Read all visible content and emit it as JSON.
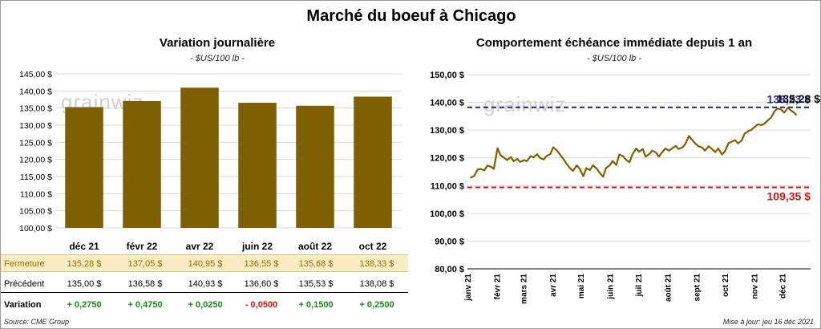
{
  "title": "Marché du boeuf à Chicago",
  "left_panel": {
    "title": "Variation  journalière",
    "subtitle": "- $US/100 lb -",
    "watermark": "grainwiz"
  },
  "right_panel": {
    "title": "Comportement  échéance  immédiate  depuis  1  an",
    "subtitle": "- $US/100 lb -",
    "watermark": "grainwiz",
    "ref_high_label": "138,23 $",
    "ref_low_label": "109,35 $",
    "last_label": "135,28 $"
  },
  "table": {
    "row_labels": {
      "close": "Fermeture",
      "prev": "Précédent",
      "var": "Variation"
    },
    "close": [
      "135,28  $",
      "137,05  $",
      "140,95  $",
      "136,55  $",
      "135,68  $",
      "138,33  $"
    ],
    "prev": [
      "135,00  $",
      "136,58  $",
      "140,93  $",
      "136,60  $",
      "135,53  $",
      "138,08  $"
    ],
    "var": [
      "+ 0,2750",
      "+ 0,4750",
      "+ 0,0250",
      "- 0,0500",
      "+ 0,1500",
      "+ 0,2500"
    ],
    "var_sign": [
      "pos",
      "pos",
      "pos",
      "neg",
      "pos",
      "pos"
    ]
  },
  "footer": {
    "source": "Source: CME Group",
    "updated": "Mise à jour: jeu 16 déc 2021"
  },
  "chart_data": [
    {
      "type": "bar",
      "title": "Variation  journalière",
      "categories": [
        "déc 21",
        "févr 22",
        "avr 22",
        "juin 22",
        "août 22",
        "oct 22"
      ],
      "values": [
        135.28,
        137.05,
        140.95,
        136.55,
        135.68,
        138.33
      ],
      "ylim": [
        100,
        145
      ],
      "ytick_values": [
        100,
        105,
        110,
        115,
        120,
        125,
        130,
        135,
        140,
        145
      ],
      "ytick_labels": [
        "100,00 $",
        "105,00 $",
        "110,00 $",
        "115,00 $",
        "120,00 $",
        "125,00 $",
        "130,00 $",
        "135,00 $",
        "140,00 $",
        "145,00 $"
      ],
      "bar_color": "#7f6000",
      "grid": true
    },
    {
      "type": "line",
      "title": "Comportement  échéance  immédiate  depuis  1  an",
      "ylim": [
        80,
        150
      ],
      "ytick_values": [
        80,
        90,
        100,
        110,
        120,
        130,
        140,
        150
      ],
      "ytick_labels": [
        "80,00 $",
        "90,00 $",
        "100,00 $",
        "110,00 $",
        "120,00 $",
        "130,00 $",
        "140,00 $",
        "150,00 $"
      ],
      "xtick_labels": [
        "janv 21",
        "févr 21",
        "mars 21",
        "avr 21",
        "mai 21",
        "juin 21",
        "juil 21",
        "août 21",
        "sept 21",
        "oct 21",
        "nov 21",
        "déc 21"
      ],
      "line_color": "#7f6000",
      "reference_lines": [
        {
          "value": 138.23,
          "color": "#1f1f9f",
          "label": "138,23 $"
        },
        {
          "value": 109.35,
          "color": "#e01010",
          "label": "109,35 $"
        }
      ],
      "series": [
        {
          "x": [
            "2021-01-04",
            "2021-01-08",
            "2021-01-12",
            "2021-01-15",
            "2021-01-19",
            "2021-01-22",
            "2021-01-26",
            "2021-01-29",
            "2021-02-02",
            "2021-02-05",
            "2021-02-09",
            "2021-02-12",
            "2021-02-16",
            "2021-02-19",
            "2021-02-23",
            "2021-02-26",
            "2021-03-02",
            "2021-03-05",
            "2021-03-09",
            "2021-03-12",
            "2021-03-16",
            "2021-03-19",
            "2021-03-23",
            "2021-03-26",
            "2021-03-30",
            "2021-04-02",
            "2021-04-06",
            "2021-04-09",
            "2021-04-13",
            "2021-04-16",
            "2021-04-20",
            "2021-04-23",
            "2021-04-27",
            "2021-04-30",
            "2021-05-04",
            "2021-05-07",
            "2021-05-11",
            "2021-05-14",
            "2021-05-18",
            "2021-05-21",
            "2021-05-25",
            "2021-05-28",
            "2021-06-01",
            "2021-06-04",
            "2021-06-08",
            "2021-06-11",
            "2021-06-15",
            "2021-06-18",
            "2021-06-22",
            "2021-06-25",
            "2021-06-29",
            "2021-07-02",
            "2021-07-06",
            "2021-07-09",
            "2021-07-13",
            "2021-07-16",
            "2021-07-20",
            "2021-07-23",
            "2021-07-27",
            "2021-07-30",
            "2021-08-03",
            "2021-08-06",
            "2021-08-10",
            "2021-08-13",
            "2021-08-17",
            "2021-08-20",
            "2021-08-24",
            "2021-08-27",
            "2021-08-31",
            "2021-09-03",
            "2021-09-07",
            "2021-09-10",
            "2021-09-14",
            "2021-09-17",
            "2021-09-21",
            "2021-09-24",
            "2021-09-28",
            "2021-10-01",
            "2021-10-05",
            "2021-10-08",
            "2021-10-12",
            "2021-10-15",
            "2021-10-19",
            "2021-10-22",
            "2021-10-26",
            "2021-10-29",
            "2021-11-02",
            "2021-11-05",
            "2021-11-09",
            "2021-11-12",
            "2021-11-16",
            "2021-11-19",
            "2021-11-23",
            "2021-11-26",
            "2021-11-30",
            "2021-12-03",
            "2021-12-07",
            "2021-12-10",
            "2021-12-14",
            "2021-12-16"
          ],
          "y": [
            112.8,
            113.4,
            115.8,
            116.0,
            115.5,
            117.2,
            116.8,
            116.0,
            123.5,
            121.0,
            120.0,
            119.2,
            120.3,
            118.8,
            119.6,
            118.5,
            119.2,
            118.8,
            120.6,
            120.2,
            121.3,
            120.0,
            119.4,
            120.7,
            121.4,
            123.8,
            122.6,
            121.3,
            119.5,
            117.9,
            116.2,
            115.3,
            117.3,
            116.1,
            113.4,
            116.3,
            115.6,
            117.3,
            116.2,
            114.7,
            113.2,
            116.3,
            117.3,
            118.9,
            117.4,
            121.2,
            120.6,
            119.4,
            118.4,
            121.3,
            123.4,
            122.2,
            123.2,
            120.4,
            121.4,
            122.6,
            121.9,
            120.4,
            122.2,
            123.4,
            122.6,
            123.4,
            124.3,
            123.2,
            123.8,
            124.9,
            127.9,
            126.6,
            125.1,
            124.2,
            123.7,
            122.6,
            124.2,
            123.3,
            122.1,
            123.4,
            121.2,
            122.3,
            125.3,
            125.8,
            126.4,
            125.2,
            126.3,
            128.7,
            129.6,
            130.1,
            131.2,
            132.1,
            131.8,
            132.3,
            133.6,
            134.5,
            136.9,
            137.8,
            137.4,
            136.3,
            138.1,
            137.1,
            136.2,
            135.28
          ]
        }
      ]
    }
  ]
}
